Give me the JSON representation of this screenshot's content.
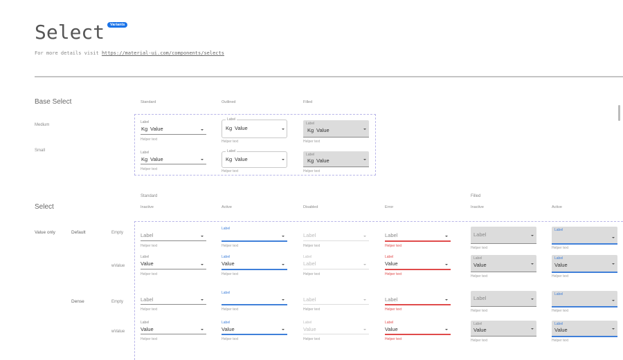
{
  "header": {
    "title": "Select",
    "badge": "Variants",
    "subtitle_prefix": "For more details visit ",
    "link": "https://material-ui.com/components/selects"
  },
  "colors": {
    "accent": "#3f7fd9",
    "error": "#e04a4a",
    "badge": "#1a73e8",
    "filled_bg": "#dcdcdc",
    "dashed_border": "#b7b4e8"
  },
  "base": {
    "title": "Base Select",
    "columns": [
      "Standard",
      "Outlined",
      "Filled"
    ],
    "rows": [
      {
        "name": "Medium",
        "fields": [
          {
            "variant": "standard",
            "label": "Label",
            "prefix": "Kg",
            "value": "Value",
            "helper": "Helper text"
          },
          {
            "variant": "outlined",
            "label": "Label",
            "prefix": "Kg",
            "value": "Value",
            "helper": "Helper text"
          },
          {
            "variant": "filled",
            "label": "Label",
            "prefix": "Kg",
            "value": "Value",
            "helper": "Helper text"
          }
        ]
      },
      {
        "name": "Small",
        "fields": [
          {
            "variant": "standard",
            "label": "Label",
            "prefix": "Kg",
            "value": "Value",
            "helper": "Helper text"
          },
          {
            "variant": "outlined",
            "label": "Label",
            "prefix": "Kg",
            "value": "Value",
            "helper": "Helper text"
          },
          {
            "variant": "filled",
            "label": "Label",
            "prefix": "Kg",
            "value": "Value",
            "helper": "Helper text"
          }
        ]
      }
    ]
  },
  "select": {
    "title": "Select",
    "groups": [
      "Standard",
      "Filled"
    ],
    "columns": [
      "Inactive",
      "Active",
      "Disabled",
      "Error",
      "Inactive",
      "Active"
    ],
    "section_label": "Value only",
    "sizes": [
      "Default",
      "Dense"
    ],
    "rows": [
      {
        "state_label": "Empty",
        "fields": [
          {
            "variant": "standard",
            "state": "inactive",
            "placeholder": "Label",
            "helper": "Helper text"
          },
          {
            "variant": "standard",
            "state": "active",
            "label": "Label",
            "helper": "Helper text"
          },
          {
            "variant": "standard",
            "state": "disabled",
            "placeholder": "Label",
            "helper": "Helper text"
          },
          {
            "variant": "standard",
            "state": "error",
            "placeholder": "Label",
            "helper": "Helper text"
          },
          {
            "variant": "filled",
            "state": "inactive",
            "placeholder": "Label",
            "helper": "Helper text"
          },
          {
            "variant": "filled",
            "state": "active",
            "label": "Label",
            "helper": "Helper text"
          }
        ]
      },
      {
        "state_label": "wValue",
        "fields": [
          {
            "variant": "standard",
            "state": "inactive",
            "label": "Label",
            "value": "Value",
            "helper": "Helper text"
          },
          {
            "variant": "standard",
            "state": "active",
            "label": "Label",
            "value": "Value",
            "helper": "Helper text"
          },
          {
            "variant": "standard",
            "state": "disabled",
            "label": "Label",
            "value": "Label",
            "helper": "Helper text"
          },
          {
            "variant": "standard",
            "state": "error",
            "label": "Label",
            "value": "Value",
            "helper": "Helper text"
          },
          {
            "variant": "filled",
            "state": "inactive",
            "label": "Label",
            "value": "Value",
            "helper": "Helper text"
          },
          {
            "variant": "filled",
            "state": "active",
            "label": "Label",
            "value": "Value",
            "helper": "Helper text"
          }
        ]
      },
      {
        "state_label": "Empty",
        "fields": [
          {
            "variant": "standard",
            "state": "inactive",
            "placeholder": "Label",
            "helper": "Helper text"
          },
          {
            "variant": "standard",
            "state": "active",
            "label": "Label",
            "helper": "Helper text"
          },
          {
            "variant": "standard",
            "state": "disabled",
            "placeholder": "Label",
            "helper": "Helper text"
          },
          {
            "variant": "standard",
            "state": "error",
            "placeholder": "Label",
            "helper": "Helper text"
          },
          {
            "variant": "filled",
            "state": "inactive",
            "placeholder": "Label",
            "helper": "Helper text"
          },
          {
            "variant": "filled",
            "state": "active",
            "label": "Label",
            "helper": "Helper text"
          }
        ]
      },
      {
        "state_label": "wValue",
        "fields": [
          {
            "variant": "standard",
            "state": "inactive",
            "label": "Label",
            "value": "Value",
            "helper": "Helper text"
          },
          {
            "variant": "standard",
            "state": "active",
            "label": "Label",
            "value": "Value",
            "helper": "Helper text"
          },
          {
            "variant": "standard",
            "state": "disabled",
            "label": "Label",
            "value": "Value",
            "helper": "Helper text"
          },
          {
            "variant": "standard",
            "state": "error",
            "label": "Label",
            "value": "Value",
            "helper": "Helper text"
          },
          {
            "variant": "filled",
            "state": "inactive",
            "label": "Label",
            "value": "Value",
            "helper": "Helper text"
          },
          {
            "variant": "filled",
            "state": "active",
            "label": "Label",
            "value": "Value",
            "helper": "Helper text"
          }
        ]
      }
    ]
  }
}
